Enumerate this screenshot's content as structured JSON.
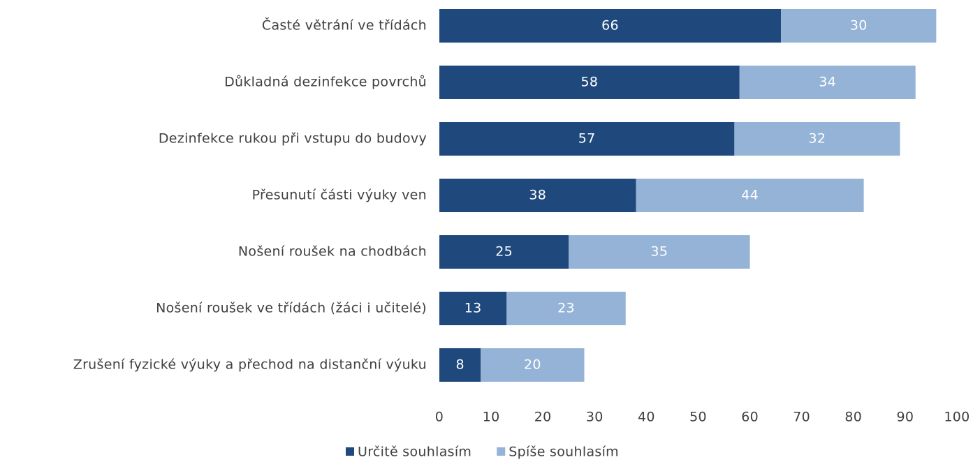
{
  "chart_data": {
    "type": "bar",
    "orientation": "horizontal",
    "stacked": true,
    "categories": [
      "Časté větrání ve třídách",
      "Důkladná dezinfekce povrchů",
      "Dezinfekce rukou při vstupu do budovy",
      "Přesunutí části výuky ven",
      "Nošení roušek na chodbách",
      "Nošení roušek ve třídách (žáci i učitelé)",
      "Zrušení fyzické výuky a přechod na distanční výuku"
    ],
    "series": [
      {
        "name": "Určitě souhlasím",
        "color": "#1f497d",
        "values": [
          66,
          58,
          57,
          38,
          25,
          13,
          8
        ]
      },
      {
        "name": "Spíše souhlasím",
        "color": "#95b3d7",
        "values": [
          30,
          34,
          32,
          44,
          35,
          23,
          20
        ]
      }
    ],
    "xlim": [
      0,
      100
    ],
    "xticks": [
      0,
      10,
      20,
      30,
      40,
      50,
      60,
      70,
      80,
      90,
      100
    ],
    "grid": false,
    "legend": "bottom"
  }
}
